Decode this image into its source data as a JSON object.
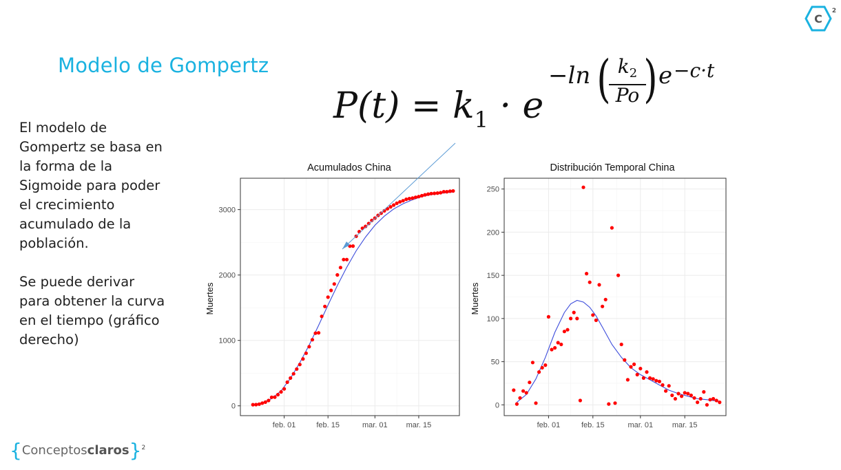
{
  "slide": {
    "title": "Modelo de Gompertz",
    "paragraph1": "El modelo de Gompertz se basa en la forma de la Sigmoide para poder el crecimiento acumulado de la población.",
    "paragraph2": "Se puede derivar para obtener la curva en el tiempo (gráfico derecho)"
  },
  "formula": {
    "lhs": "P(t) = k",
    "k1_sub": "1",
    "dot_e": " · e",
    "exp_prefix": "−ln",
    "frac_num": "k",
    "frac_num_sub": "2",
    "frac_den": "Po",
    "exp_e": "e",
    "exp_tail": "−c·t"
  },
  "logos": {
    "top_right_letter": "C",
    "top_right_sup": "2",
    "bottom_left_light": "Conceptos",
    "bottom_left_bold": "claros",
    "bottom_left_sup": "2"
  },
  "colors": {
    "accent": "#1ab2e0",
    "points": "#ff0000",
    "fit_line": "#3b4bdb",
    "annotation": "#5b9bd5",
    "panel_border": "#333333",
    "grid": "#ebebeb"
  },
  "chart_data": [
    {
      "type": "scatter",
      "title": "Acumulados China",
      "xlabel": "",
      "ylabel": "Muertes",
      "x_is_date": true,
      "xlim": [
        "2020-01-18",
        "2020-03-28"
      ],
      "ylim": [
        -150,
        3480
      ],
      "x_ticks": [
        {
          "date": "2020-02-01",
          "label": "feb. 01"
        },
        {
          "date": "2020-02-15",
          "label": "feb. 15"
        },
        {
          "date": "2020-03-01",
          "label": "mar. 01"
        },
        {
          "date": "2020-03-15",
          "label": "mar. 15"
        }
      ],
      "y_ticks": [
        0,
        1000,
        2000,
        3000
      ],
      "grid": true,
      "legend": "none",
      "annotation_arrow": "from top-right toward fitted curve",
      "series": [
        {
          "name": "",
          "style": "points",
          "x": [
            "2020-01-22",
            "2020-01-23",
            "2020-01-24",
            "2020-01-25",
            "2020-01-26",
            "2020-01-27",
            "2020-01-28",
            "2020-01-29",
            "2020-01-30",
            "2020-01-31",
            "2020-02-01",
            "2020-02-02",
            "2020-02-03",
            "2020-02-04",
            "2020-02-05",
            "2020-02-06",
            "2020-02-07",
            "2020-02-08",
            "2020-02-09",
            "2020-02-10",
            "2020-02-11",
            "2020-02-12",
            "2020-02-13",
            "2020-02-14",
            "2020-02-15",
            "2020-02-16",
            "2020-02-17",
            "2020-02-18",
            "2020-02-19",
            "2020-02-20",
            "2020-02-21",
            "2020-02-22",
            "2020-02-23",
            "2020-02-24",
            "2020-02-25",
            "2020-02-26",
            "2020-02-27",
            "2020-02-28",
            "2020-02-29",
            "2020-03-01",
            "2020-03-02",
            "2020-03-03",
            "2020-03-04",
            "2020-03-05",
            "2020-03-06",
            "2020-03-07",
            "2020-03-08",
            "2020-03-09",
            "2020-03-10",
            "2020-03-11",
            "2020-03-12",
            "2020-03-13",
            "2020-03-14",
            "2020-03-15",
            "2020-03-16",
            "2020-03-17",
            "2020-03-18",
            "2020-03-19",
            "2020-03-20",
            "2020-03-21",
            "2020-03-22",
            "2020-03-23",
            "2020-03-24",
            "2020-03-25",
            "2020-03-26"
          ],
          "y": [
            17,
            18,
            26,
            42,
            56,
            82,
            131,
            133,
            171,
            213,
            259,
            361,
            425,
            490,
            562,
            632,
            717,
            804,
            904,
            1011,
            1111,
            1116,
            1368,
            1520,
            1662,
            1765,
            1863,
            2002,
            2114,
            2236,
            2236,
            2441,
            2443,
            2593,
            2663,
            2715,
            2744,
            2788,
            2835,
            2870,
            2912,
            2945,
            2981,
            3013,
            3042,
            3070,
            3097,
            3119,
            3136,
            3158,
            3169,
            3176,
            3189,
            3199,
            3213,
            3226,
            3237,
            3245,
            3249,
            3253,
            3259,
            3274,
            3274,
            3281,
            3285
          ]
        },
        {
          "name": "",
          "style": "line",
          "x": [
            "2020-01-22",
            "2020-01-25",
            "2020-01-28",
            "2020-01-31",
            "2020-02-03",
            "2020-02-06",
            "2020-02-09",
            "2020-02-12",
            "2020-02-15",
            "2020-02-18",
            "2020-02-21",
            "2020-02-24",
            "2020-02-27",
            "2020-03-01",
            "2020-03-04",
            "2020-03-07",
            "2020-03-10",
            "2020-03-13",
            "2020-03-16",
            "2020-03-19",
            "2020-03-22",
            "2020-03-26"
          ],
          "y": [
            20,
            45,
            110,
            230,
            420,
            660,
            930,
            1230,
            1540,
            1840,
            2120,
            2370,
            2580,
            2760,
            2900,
            3010,
            3090,
            3150,
            3200,
            3230,
            3250,
            3270
          ]
        }
      ]
    },
    {
      "type": "scatter",
      "title": "Distribución Temporal China",
      "xlabel": "",
      "ylabel": "Muertes",
      "x_is_date": true,
      "xlim": [
        "2020-01-18",
        "2020-03-28"
      ],
      "ylim": [
        -12.5,
        262.5
      ],
      "x_ticks": [
        {
          "date": "2020-02-01",
          "label": "feb. 01"
        },
        {
          "date": "2020-02-15",
          "label": "feb. 15"
        },
        {
          "date": "2020-03-01",
          "label": "mar. 01"
        },
        {
          "date": "2020-03-15",
          "label": "mar. 15"
        }
      ],
      "y_ticks": [
        0,
        50,
        100,
        150,
        200,
        250
      ],
      "grid": true,
      "legend": "none",
      "series": [
        {
          "name": "",
          "style": "points",
          "x": [
            "2020-01-21",
            "2020-01-22",
            "2020-01-23",
            "2020-01-24",
            "2020-01-25",
            "2020-01-26",
            "2020-01-27",
            "2020-01-28",
            "2020-01-29",
            "2020-01-30",
            "2020-01-31",
            "2020-02-01",
            "2020-02-02",
            "2020-02-03",
            "2020-02-04",
            "2020-02-05",
            "2020-02-06",
            "2020-02-07",
            "2020-02-08",
            "2020-02-09",
            "2020-02-10",
            "2020-02-11",
            "2020-02-12",
            "2020-02-13",
            "2020-02-14",
            "2020-02-15",
            "2020-02-16",
            "2020-02-17",
            "2020-02-18",
            "2020-02-19",
            "2020-02-20",
            "2020-02-21",
            "2020-02-22",
            "2020-02-23",
            "2020-02-24",
            "2020-02-25",
            "2020-02-26",
            "2020-02-27",
            "2020-02-28",
            "2020-02-29",
            "2020-03-01",
            "2020-03-02",
            "2020-03-03",
            "2020-03-04",
            "2020-03-05",
            "2020-03-06",
            "2020-03-07",
            "2020-03-08",
            "2020-03-09",
            "2020-03-10",
            "2020-03-11",
            "2020-03-12",
            "2020-03-13",
            "2020-03-14",
            "2020-03-15",
            "2020-03-16",
            "2020-03-17",
            "2020-03-18",
            "2020-03-19",
            "2020-03-20",
            "2020-03-21",
            "2020-03-22",
            "2020-03-23",
            "2020-03-24",
            "2020-03-25",
            "2020-03-26"
          ],
          "y": [
            17,
            1,
            8,
            16,
            14,
            26,
            49,
            2,
            38,
            43,
            46,
            102,
            64,
            66,
            72,
            70,
            85,
            87,
            100,
            107,
            100,
            5,
            252,
            152,
            142,
            104,
            98,
            139,
            114,
            122,
            1,
            205,
            2,
            150,
            70,
            52,
            29,
            44,
            47,
            35,
            42,
            31,
            38,
            31,
            30,
            28,
            27,
            23,
            16,
            22,
            11,
            7,
            13,
            10,
            14,
            13,
            11,
            8,
            3,
            7,
            15,
            0,
            6,
            7,
            5,
            3
          ]
        },
        {
          "name": "",
          "style": "line",
          "x": [
            "2020-01-22",
            "2020-01-25",
            "2020-01-28",
            "2020-01-31",
            "2020-02-03",
            "2020-02-06",
            "2020-02-08",
            "2020-02-10",
            "2020-02-12",
            "2020-02-14",
            "2020-02-16",
            "2020-02-18",
            "2020-02-21",
            "2020-02-24",
            "2020-02-27",
            "2020-03-01",
            "2020-03-04",
            "2020-03-07",
            "2020-03-10",
            "2020-03-13",
            "2020-03-16",
            "2020-03-19",
            "2020-03-22",
            "2020-03-26"
          ],
          "y": [
            3,
            12,
            30,
            55,
            84,
            107,
            117,
            121,
            119,
            113,
            103,
            90,
            70,
            55,
            43,
            35,
            29,
            23,
            17,
            13,
            10,
            7,
            6,
            4
          ]
        }
      ]
    }
  ]
}
